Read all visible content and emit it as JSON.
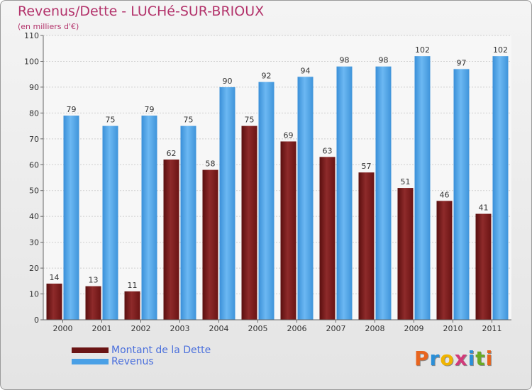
{
  "chart_data": {
    "type": "bar",
    "title": "Revenus/Dette - LUCHé-SUR-BRIOUX",
    "subtitle": "(en milliers d'€)",
    "categories": [
      "2000",
      "2001",
      "2002",
      "2003",
      "2004",
      "2005",
      "2006",
      "2007",
      "2008",
      "2009",
      "2010",
      "2011"
    ],
    "series": [
      {
        "name": "Montant de la Dette",
        "color": "#7a1a1a",
        "values": [
          14,
          13,
          11,
          62,
          58,
          75,
          69,
          63,
          57,
          51,
          46,
          41
        ]
      },
      {
        "name": "Revenus",
        "color": "#4aa0e6",
        "values": [
          79,
          75,
          79,
          75,
          90,
          92,
          94,
          98,
          98,
          102,
          97,
          102
        ]
      }
    ],
    "ylim": [
      0,
      110
    ],
    "yticks": [
      0,
      10,
      20,
      30,
      40,
      50,
      60,
      70,
      80,
      90,
      100,
      110
    ],
    "grid": true,
    "legend_position": "bottom-left"
  },
  "logo": {
    "text": "Proxiti",
    "colors": [
      "#e8641e",
      "#2a8fd8",
      "#f0b400",
      "#d23a7a",
      "#2a8fd8",
      "#6aaa24",
      "#e8641e"
    ]
  }
}
